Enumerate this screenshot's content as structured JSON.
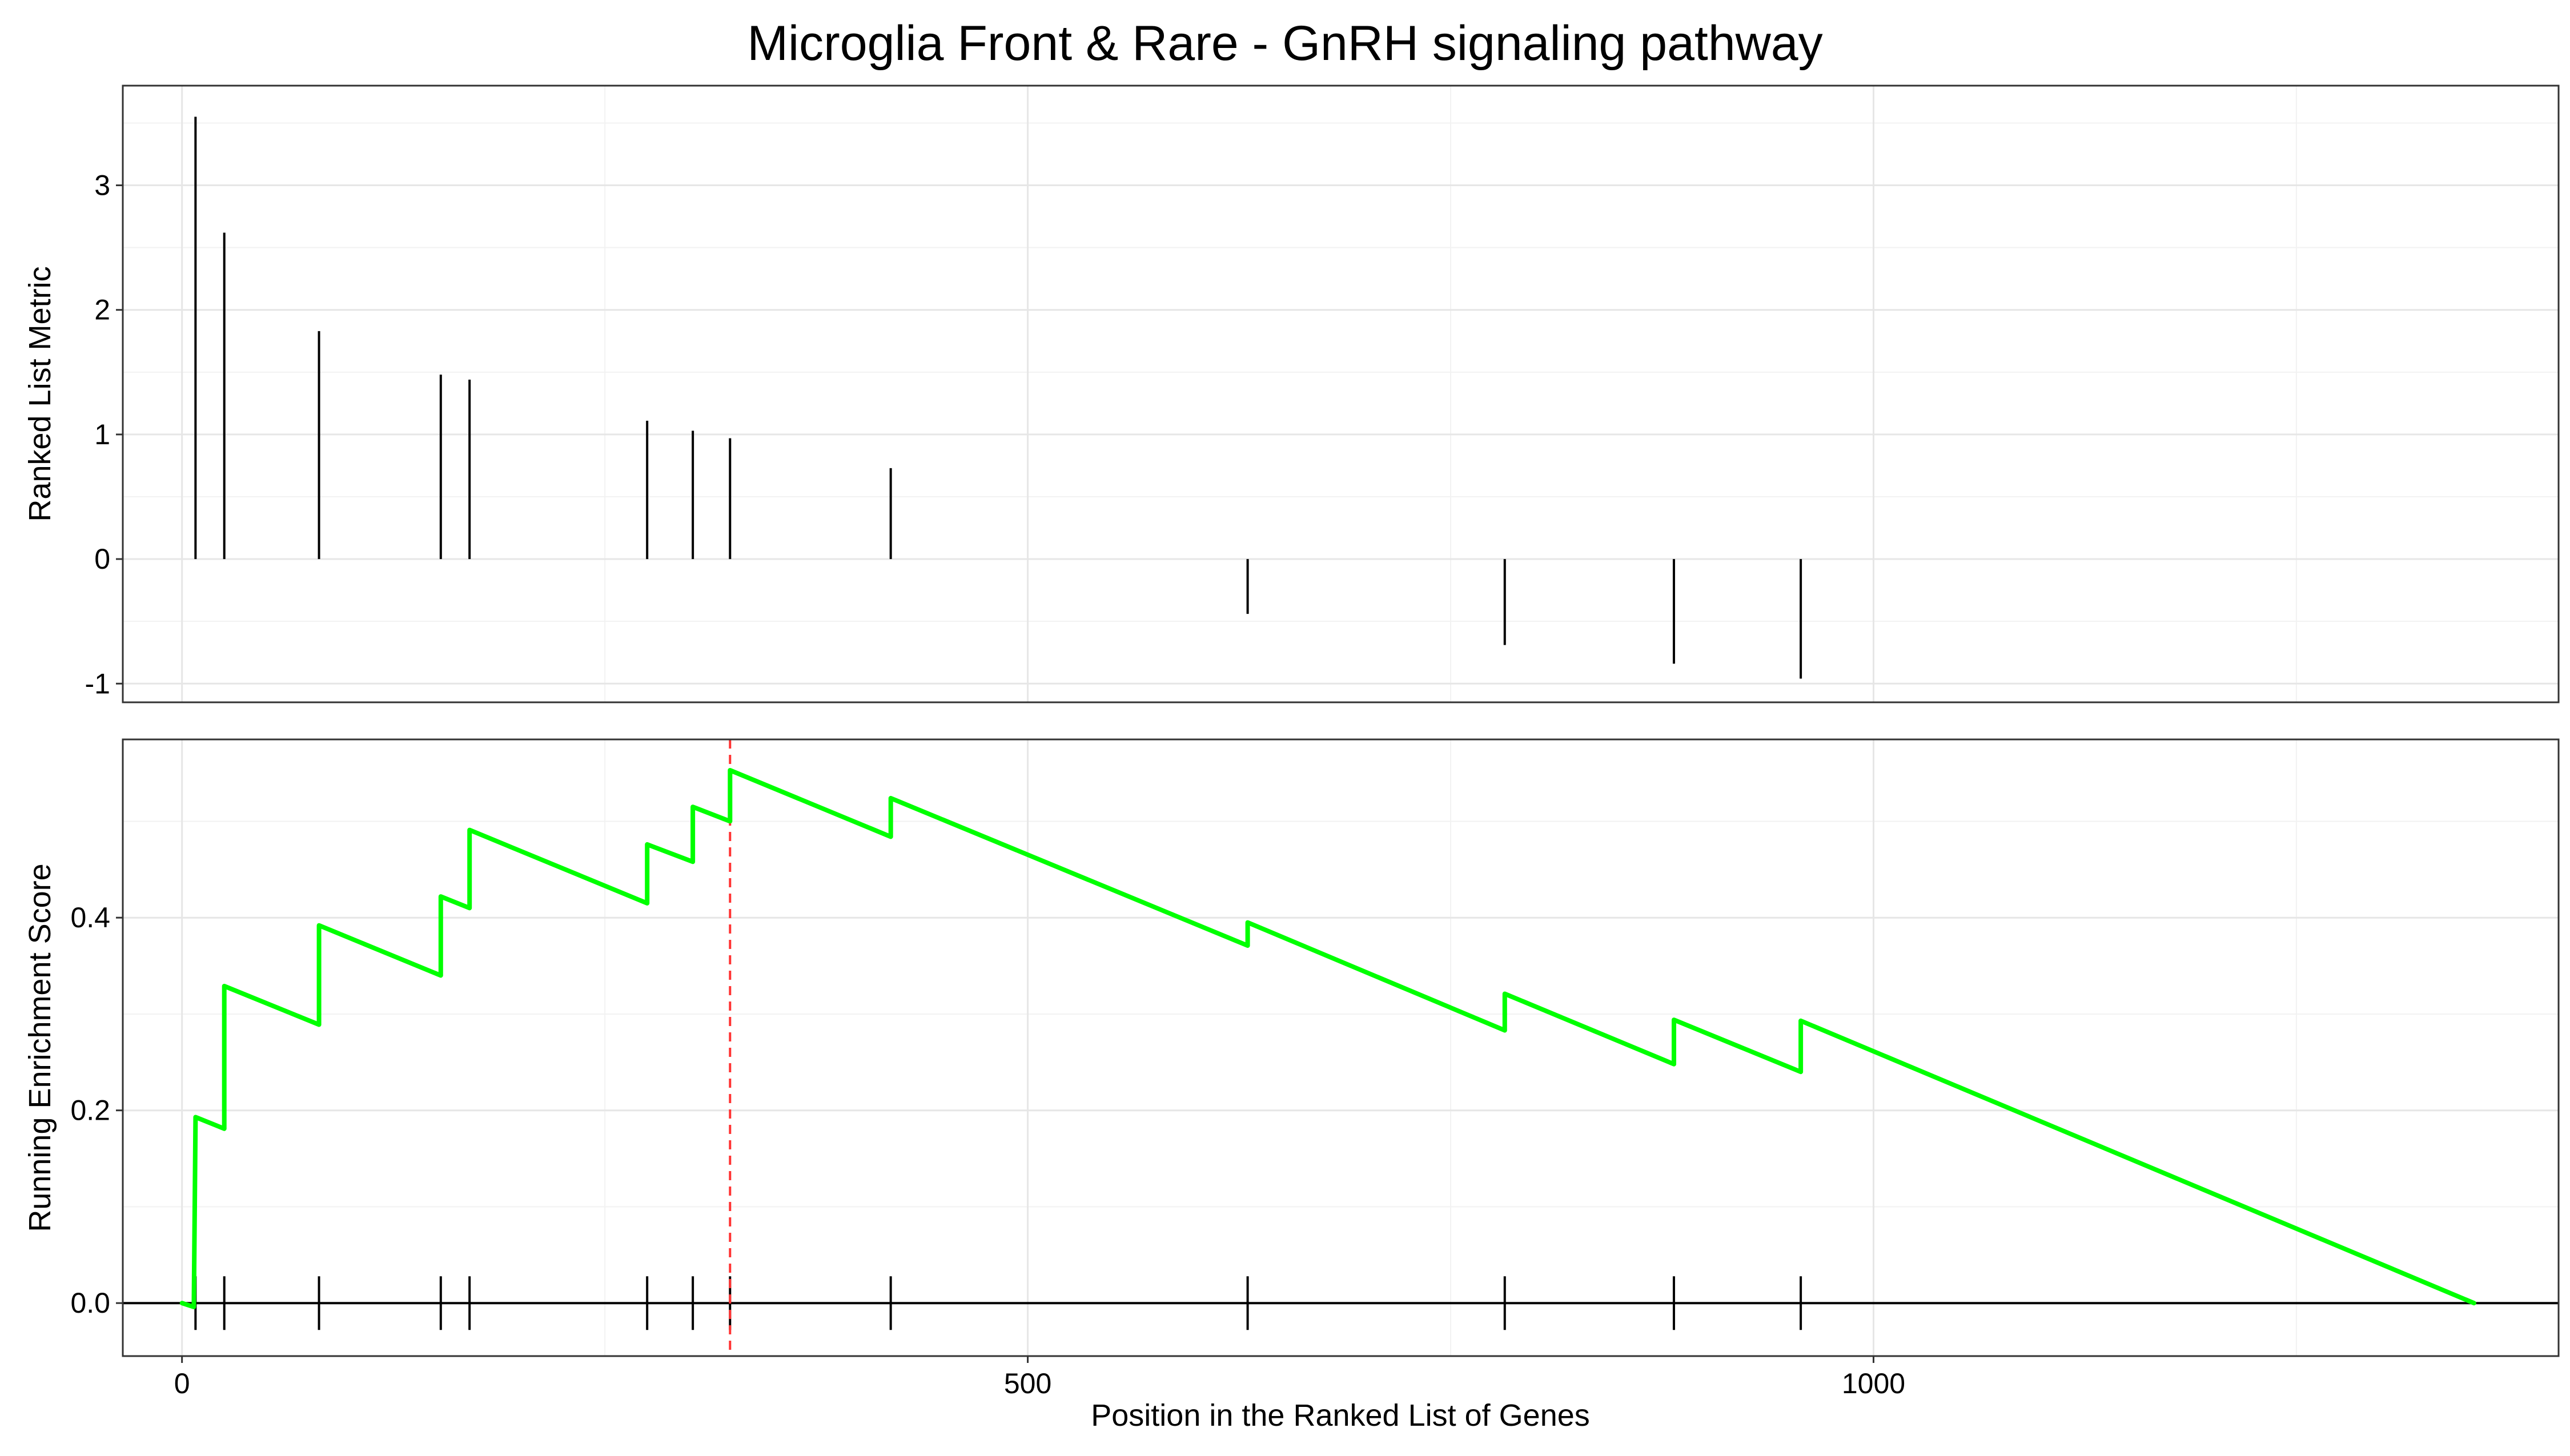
{
  "chart_data": [
    {
      "type": "bar",
      "title": "Microglia Front & Rare - GnRH signaling pathway",
      "ylabel": "Ranked List Metric",
      "xlabel": "",
      "ylim": [
        -1.15,
        3.8
      ],
      "xlim": [
        -35,
        1405
      ],
      "yticks": [
        -1,
        0,
        1,
        2,
        3
      ],
      "grid": true,
      "x": [
        8,
        25,
        81,
        153,
        170,
        275,
        302,
        324,
        419,
        630,
        782,
        882,
        957
      ],
      "values": [
        3.55,
        2.62,
        1.83,
        1.48,
        1.44,
        1.11,
        1.03,
        0.97,
        0.73,
        -0.44,
        -0.69,
        -0.84,
        -0.96
      ]
    },
    {
      "type": "line",
      "ylabel": "Running Enrichment Score",
      "xlabel": "Position in the Ranked List of Genes",
      "xlim": [
        -35,
        1405
      ],
      "ylim": [
        -0.055,
        0.585
      ],
      "xticks": [
        0,
        500,
        1000
      ],
      "yticks": [
        0.0,
        0.2,
        0.4
      ],
      "grid": true,
      "line_color": "#00ff00",
      "zero_line_color": "#000000",
      "peak_marker": {
        "x": 324,
        "color": "#ff3333",
        "style": "dashed"
      },
      "hit_positions": [
        8,
        25,
        81,
        153,
        170,
        275,
        302,
        324,
        419,
        630,
        782,
        882,
        957
      ],
      "series": [
        {
          "x": [
            0,
            7,
            8,
            25,
            25,
            81,
            81,
            153,
            153,
            170,
            170,
            275,
            275,
            302,
            302,
            324,
            324,
            419,
            419,
            630,
            630,
            782,
            782,
            882,
            882,
            957,
            957,
            1355
          ],
          "y": [
            0.0,
            -0.004,
            0.193,
            0.181,
            0.329,
            0.289,
            0.392,
            0.34,
            0.422,
            0.41,
            0.491,
            0.415,
            0.476,
            0.458,
            0.515,
            0.5,
            0.553,
            0.484,
            0.524,
            0.371,
            0.395,
            0.283,
            0.321,
            0.248,
            0.294,
            0.24,
            0.293,
            0.0
          ]
        }
      ]
    }
  ]
}
